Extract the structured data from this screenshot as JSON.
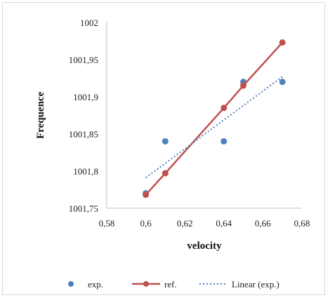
{
  "chart_data": {
    "type": "scatter",
    "title": "",
    "xlabel": "velocity",
    "ylabel": "Frequence",
    "xlim": [
      0.58,
      0.68
    ],
    "ylim": [
      1001.75,
      1002
    ],
    "x_ticks": [
      "0,58",
      "0,6",
      "0,62",
      "0,64",
      "0,66",
      "0,68"
    ],
    "y_ticks": [
      "1001,75",
      "1001,8",
      "1001,85",
      "1001,9",
      "1001,95",
      "1002"
    ],
    "grid": false,
    "legend_position": "bottom",
    "series": [
      {
        "name": "exp.",
        "kind": "markers",
        "color": "#4f81bd",
        "points": [
          [
            0.6,
            1001.77
          ],
          [
            0.61,
            1001.84
          ],
          [
            0.64,
            1001.84
          ],
          [
            0.65,
            1001.92
          ],
          [
            0.67,
            1001.92
          ]
        ]
      },
      {
        "name": "ref.",
        "kind": "line-markers",
        "color": "#c0504d",
        "points": [
          [
            0.6,
            1001.768
          ],
          [
            0.61,
            1001.797
          ],
          [
            0.64,
            1001.885
          ],
          [
            0.65,
            1001.915
          ],
          [
            0.67,
            1001.973
          ]
        ]
      },
      {
        "name": "Linear (exp.)",
        "kind": "dotted-trendline",
        "color": "#4f81bd",
        "points": [
          [
            0.6,
            1001.791
          ],
          [
            0.67,
            1001.927
          ]
        ]
      }
    ]
  }
}
